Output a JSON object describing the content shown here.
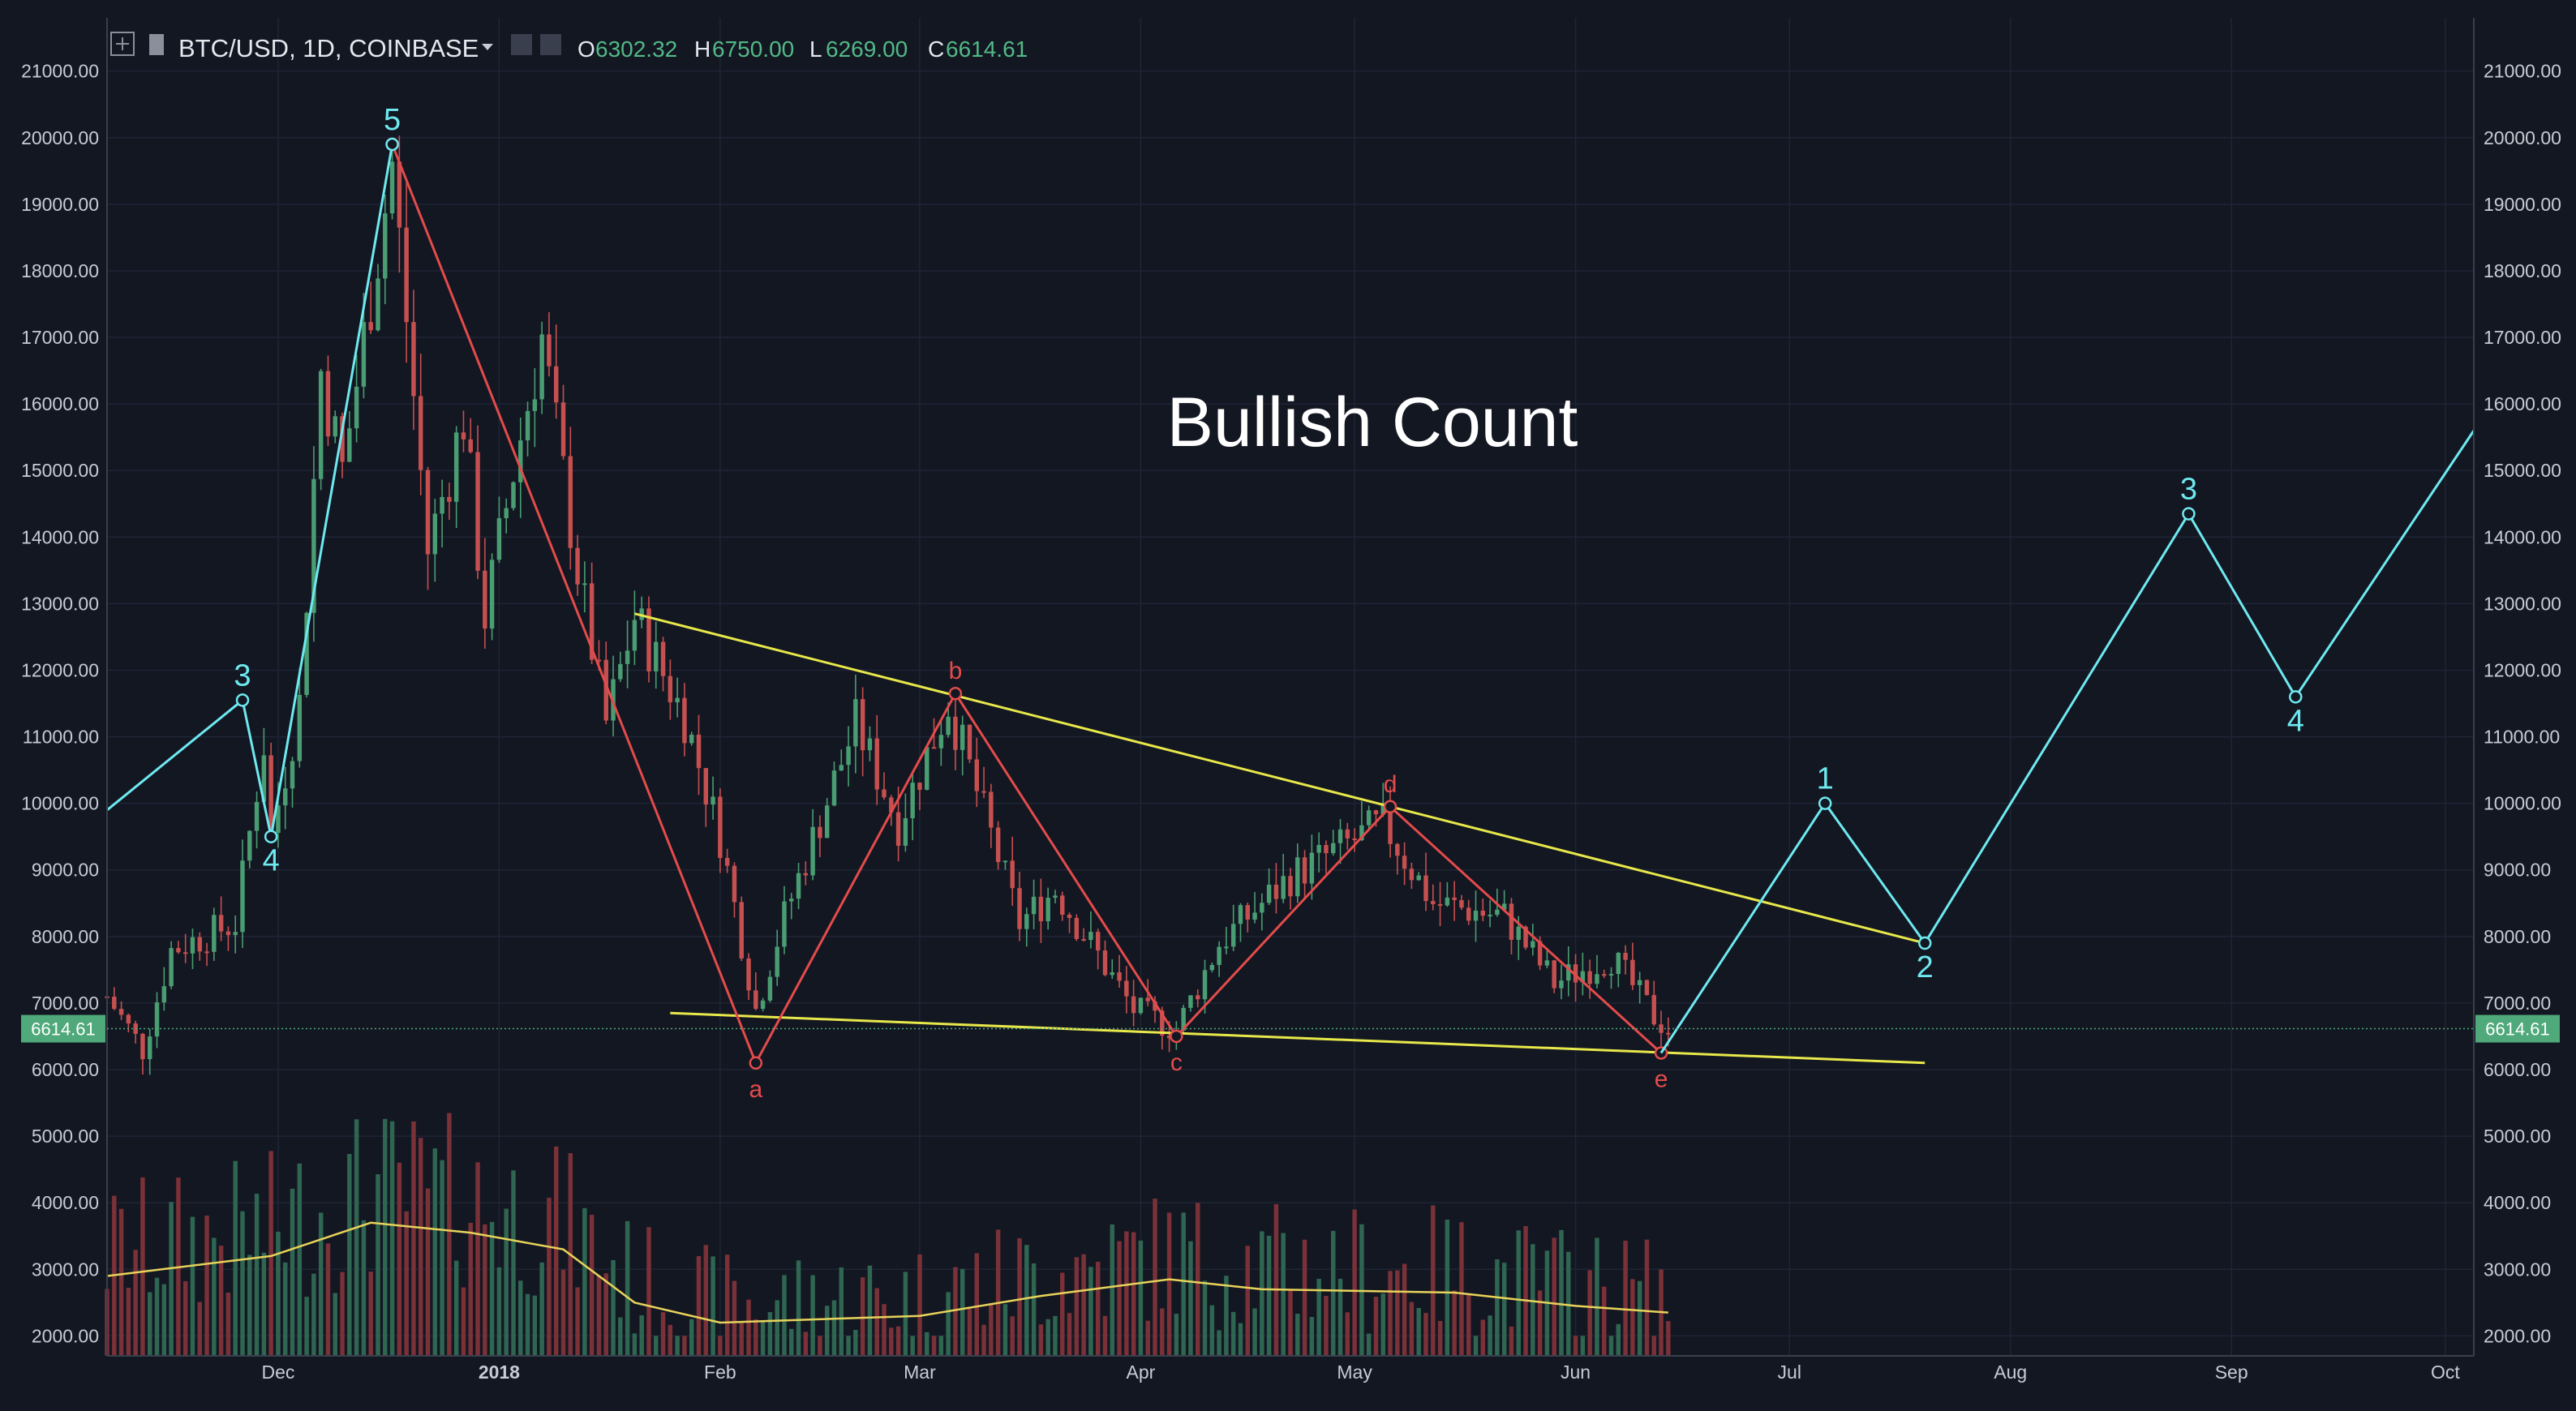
{
  "header": {
    "symbol": "BTC/USD, 1D, COINBASE",
    "open_label": "O",
    "open_value": "6302.32",
    "high_label": "H",
    "high_value": "6750.00",
    "low_label": "L",
    "low_value": "6269.00",
    "close_label": "C",
    "close_value": "6614.61"
  },
  "chart_data": {
    "type": "candlestick",
    "annotation": "Bullish Count",
    "last_price": "6614.61",
    "y_tick_labels": [
      "2000.00",
      "3000.00",
      "4000.00",
      "5000.00",
      "6000.00",
      "7000.00",
      "8000.00",
      "9000.00",
      "10000.00",
      "11000.00",
      "12000.00",
      "13000.00",
      "14000.00",
      "15000.00",
      "16000.00",
      "17000.00",
      "18000.00",
      "19000.00",
      "20000.00",
      "21000.00"
    ],
    "y_ticks": [
      2000,
      3000,
      4000,
      5000,
      6000,
      7000,
      8000,
      9000,
      10000,
      11000,
      12000,
      13000,
      14000,
      15000,
      16000,
      17000,
      18000,
      19000,
      20000,
      21000
    ],
    "ylim": [
      1700,
      21800
    ],
    "x_range": [
      "2017-11-07",
      "2018-10-05"
    ],
    "x_ticks": [
      {
        "date": "2017-12-01",
        "label": "Dec"
      },
      {
        "date": "2018-01-01",
        "label": "2018"
      },
      {
        "date": "2018-02-01",
        "label": "Feb"
      },
      {
        "date": "2018-03-01",
        "label": "Mar"
      },
      {
        "date": "2018-04-01",
        "label": "Apr"
      },
      {
        "date": "2018-05-01",
        "label": "May"
      },
      {
        "date": "2018-06-01",
        "label": "Jun"
      },
      {
        "date": "2018-07-01",
        "label": "Jul"
      },
      {
        "date": "2018-08-01",
        "label": "Aug"
      },
      {
        "date": "2018-09-01",
        "label": "Sep"
      },
      {
        "date": "2018-10-01",
        "label": "Oct"
      }
    ],
    "price_path": [
      [
        "2017-11-07",
        7100
      ],
      [
        "2017-11-12",
        6300
      ],
      [
        "2017-11-16",
        7800
      ],
      [
        "2017-11-25",
        8200
      ],
      [
        "2017-11-29",
        10900
      ],
      [
        "2017-11-30",
        9500
      ],
      [
        "2017-12-04",
        11500
      ],
      [
        "2017-12-07",
        16500
      ],
      [
        "2017-12-10",
        15000
      ],
      [
        "2017-12-17",
        19600
      ],
      [
        "2017-12-22",
        13800
      ],
      [
        "2017-12-27",
        15800
      ],
      [
        "2017-12-30",
        12800
      ],
      [
        "2018-01-03",
        15000
      ],
      [
        "2018-01-07",
        17000
      ],
      [
        "2018-01-12",
        13500
      ],
      [
        "2018-01-16",
        11200
      ],
      [
        "2018-01-20",
        12800
      ],
      [
        "2018-01-27",
        11300
      ],
      [
        "2018-02-01",
        9500
      ],
      [
        "2018-02-06",
        6900
      ],
      [
        "2018-02-10",
        8300
      ],
      [
        "2018-02-20",
        11200
      ],
      [
        "2018-02-26",
        9700
      ],
      [
        "2018-03-05",
        11500
      ],
      [
        "2018-03-15",
        8200
      ],
      [
        "2018-03-20",
        8700
      ],
      [
        "2018-03-31",
        6900
      ],
      [
        "2018-04-06",
        6600
      ],
      [
        "2018-04-12",
        7900
      ],
      [
        "2018-04-22",
        8900
      ],
      [
        "2018-05-05",
        9700
      ],
      [
        "2018-05-12",
        8500
      ],
      [
        "2018-05-22",
        8300
      ],
      [
        "2018-05-29",
        7300
      ],
      [
        "2018-06-06",
        7700
      ],
      [
        "2018-06-12",
        6800
      ],
      [
        "2018-06-14",
        6614
      ]
    ],
    "volume_path": [
      [
        "2017-11-07",
        2900
      ],
      [
        "2017-11-30",
        3200
      ],
      [
        "2017-12-14",
        3700
      ],
      [
        "2017-12-28",
        3550
      ],
      [
        "2018-01-10",
        3300
      ],
      [
        "2018-01-20",
        2500
      ],
      [
        "2018-02-01",
        2200
      ],
      [
        "2018-03-01",
        2300
      ],
      [
        "2018-03-18",
        2600
      ],
      [
        "2018-04-05",
        2850
      ],
      [
        "2018-04-18",
        2700
      ],
      [
        "2018-05-15",
        2650
      ],
      [
        "2018-06-01",
        2450
      ],
      [
        "2018-06-14",
        2350
      ]
    ],
    "trendlines": [
      {
        "name": "upper",
        "color": "#e8e84a",
        "points": [
          [
            "2018-01-20",
            12850
          ],
          [
            "2018-07-20",
            7900
          ]
        ]
      },
      {
        "name": "lower",
        "color": "#e8e84a",
        "points": [
          [
            "2018-01-25",
            6850
          ],
          [
            "2018-07-20",
            6100
          ]
        ]
      }
    ],
    "red_wave": {
      "color": "#e44b4b",
      "points": [
        {
          "date": "2017-12-17",
          "value": 19900,
          "label": ""
        },
        {
          "date": "2018-02-06",
          "value": 6100,
          "label": "a"
        },
        {
          "date": "2018-03-06",
          "value": 11650,
          "label": "b"
        },
        {
          "date": "2018-04-06",
          "value": 6500,
          "label": "c"
        },
        {
          "date": "2018-05-06",
          "value": 9950,
          "label": "d"
        },
        {
          "date": "2018-06-13",
          "value": 6250,
          "label": "e"
        }
      ]
    },
    "cyan_wave_past": {
      "color": "#6ee9f0",
      "points": [
        {
          "date": "2017-11-07",
          "value": 9900,
          "label": ""
        },
        {
          "date": "2017-11-26",
          "value": 11550,
          "label": "3"
        },
        {
          "date": "2017-11-30",
          "value": 9500,
          "label": "4"
        },
        {
          "date": "2017-12-17",
          "value": 19900,
          "label": "5"
        }
      ]
    },
    "cyan_wave_future": {
      "color": "#6ee9f0",
      "points": [
        {
          "date": "2018-06-13",
          "value": 6250,
          "label": ""
        },
        {
          "date": "2018-07-06",
          "value": 10000,
          "label": "1"
        },
        {
          "date": "2018-07-20",
          "value": 7900,
          "label": "2"
        },
        {
          "date": "2018-08-26",
          "value": 14350,
          "label": "3"
        },
        {
          "date": "2018-09-10",
          "value": 11600,
          "label": "4"
        },
        {
          "date": "2018-10-05",
          "value": 15600,
          "label": ""
        }
      ]
    },
    "colors": {
      "background": "#131722",
      "grid": "#1f2536",
      "up": "#4a9d72",
      "down": "#c65050",
      "vol_up": "#2f6652",
      "vol_down": "#7a3138",
      "vol_ma": "#e8d35a",
      "axis_text": "#c7cbd4",
      "price_tag": "#4fa97a",
      "cyan": "#6ee9f0",
      "red": "#e44b4b",
      "yellow": "#e8e84a"
    }
  }
}
